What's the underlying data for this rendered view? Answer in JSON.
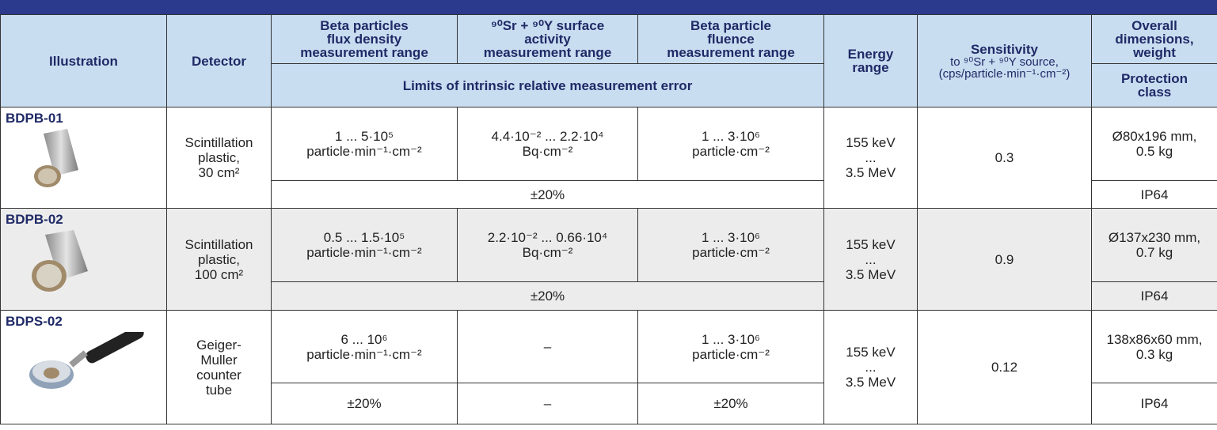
{
  "header": {
    "illustration": "Illustration",
    "detector": "Detector",
    "flux": "Beta particles\nflux density\nmeasurement range",
    "surface": "⁹⁰Sr + ⁹⁰Y surface\nactivity\nmeasurement range",
    "fluence": "Beta particle\nfluence\nmeasurement range",
    "energy": "Energy\nrange",
    "sensitivity": "Sensitivity",
    "sensitivity_note": "to ⁹⁰Sr + ⁹⁰Y source,\n(cps/particle·min⁻¹·cm⁻²)",
    "dimensions": "Overall\ndimensions,\nweight",
    "error_limits": "Limits of intrinsic relative measurement error",
    "protection": "Protection\nclass"
  },
  "rows": [
    {
      "model": "BDPB-01",
      "detector": "Scintillation\nplastic,\n30 cm²",
      "flux": "1 ... 5·10⁵\nparticle·min⁻¹·cm⁻²",
      "surface": "4.4·10⁻² ... 2.2·10⁴\nBq·cm⁻²",
      "fluence": "1 ... 3·10⁶\nparticle·cm⁻²",
      "energy": "155 keV\n...\n3.5 MeV",
      "sensitivity": "0.3",
      "dimensions": "Ø80x196 mm,\n0.5 kg",
      "errors": [
        "±20%"
      ],
      "protection": "IP64"
    },
    {
      "model": "BDPB-02",
      "detector": "Scintillation\nplastic,\n100 cm²",
      "flux": "0.5 ... 1.5·10⁵\nparticle·min⁻¹·cm⁻²",
      "surface": "2.2·10⁻² ... 0.66·10⁴\nBq·cm⁻²",
      "fluence": "1 ... 3·10⁶\nparticle·cm⁻²",
      "energy": "155 keV\n...\n3.5 MeV",
      "sensitivity": "0.9",
      "dimensions": "Ø137x230 mm,\n0.7 kg",
      "errors": [
        "±20%"
      ],
      "protection": "IP64"
    },
    {
      "model": "BDPS-02",
      "detector": "Geiger-\nMuller\ncounter\ntube",
      "flux": "6 ... 10⁶\nparticle·min⁻¹·cm⁻²",
      "surface": "–",
      "fluence": "1 ... 3·10⁶\nparticle·cm⁻²",
      "energy": "155 keV\n...\n3.5 MeV",
      "sensitivity": "0.12",
      "dimensions": "138x86x60 mm,\n0.3 kg",
      "errors": [
        "±20%",
        "–",
        "±20%"
      ],
      "protection": "IP64"
    }
  ]
}
